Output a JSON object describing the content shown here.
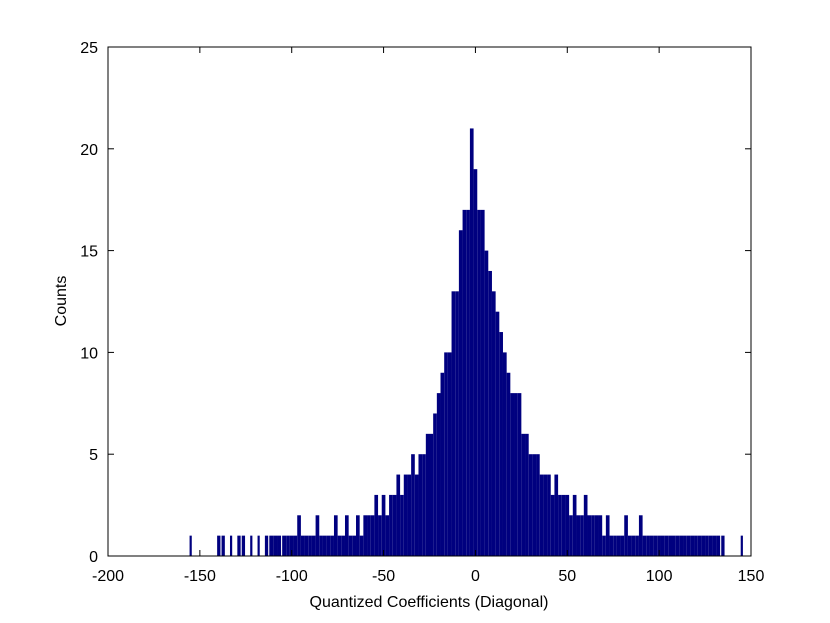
{
  "chart_data": {
    "type": "bar",
    "title": "",
    "xlabel": "Quantized Coefficients (Diagonal)",
    "ylabel": "Counts",
    "xlim": [
      -200,
      150
    ],
    "ylim": [
      0,
      25
    ],
    "xticks": [
      -200,
      -150,
      -100,
      -50,
      0,
      50,
      100,
      150
    ],
    "yticks": [
      0,
      5,
      10,
      15,
      20,
      25
    ],
    "grid": false,
    "bar_color": "#00007F",
    "series": [
      {
        "x": [
          -155,
          -140,
          -137,
          -133,
          -129,
          -126,
          -122,
          -118,
          -114,
          -111,
          -109,
          -107,
          -104,
          -102,
          -100,
          -98,
          -96,
          -94,
          -92,
          -90,
          -88,
          -86,
          -84,
          -82,
          -80,
          -78,
          -76,
          -74,
          -72,
          -70,
          -68,
          -66,
          -64,
          -62,
          -60,
          -58,
          -56,
          -54,
          -52,
          -50,
          -48,
          -46,
          -44,
          -42,
          -40,
          -38,
          -36,
          -34,
          -32,
          -30,
          -28,
          -26,
          -24,
          -22,
          -20,
          -18,
          -16,
          -14,
          -12,
          -10,
          -8,
          -6,
          -4,
          -2,
          0,
          2,
          4,
          6,
          8,
          10,
          12,
          14,
          16,
          18,
          20,
          22,
          24,
          26,
          28,
          30,
          32,
          34,
          36,
          38,
          40,
          42,
          44,
          46,
          48,
          50,
          52,
          54,
          56,
          58,
          60,
          62,
          64,
          66,
          68,
          70,
          72,
          74,
          76,
          78,
          80,
          82,
          84,
          86,
          88,
          90,
          92,
          94,
          96,
          98,
          100,
          102,
          104,
          106,
          108,
          110,
          112,
          114,
          116,
          118,
          120,
          122,
          124,
          126,
          128,
          130,
          132,
          135,
          145
        ],
        "y": [
          1,
          1,
          1,
          1,
          1,
          1,
          1,
          1,
          1,
          1,
          1,
          1,
          1,
          1,
          1,
          1,
          2,
          1,
          1,
          1,
          1,
          2,
          1,
          1,
          1,
          1,
          2,
          1,
          1,
          2,
          1,
          1,
          2,
          1,
          2,
          2,
          2,
          3,
          2,
          3,
          2,
          3,
          3,
          4,
          3,
          4,
          4,
          5,
          4,
          5,
          5,
          6,
          6,
          7,
          8,
          9,
          10,
          10,
          13,
          13,
          16,
          17,
          17,
          21,
          19,
          17,
          17,
          15,
          14,
          13,
          12,
          11,
          10,
          9,
          8,
          8,
          8,
          6,
          6,
          5,
          5,
          5,
          4,
          4,
          4,
          3,
          4,
          3,
          3,
          3,
          2,
          3,
          2,
          2,
          3,
          2,
          2,
          2,
          2,
          1,
          2,
          1,
          1,
          1,
          1,
          2,
          1,
          1,
          1,
          2,
          1,
          1,
          1,
          1,
          1,
          1,
          1,
          1,
          1,
          1,
          1,
          1,
          1,
          1,
          1,
          1,
          1,
          1,
          1,
          1,
          1,
          1,
          1
        ]
      }
    ]
  }
}
